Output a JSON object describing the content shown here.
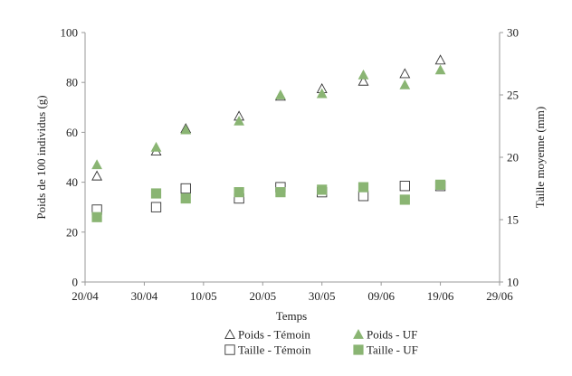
{
  "chart_data": {
    "type": "scatter",
    "xlabel": "Temps",
    "ylabel_left": "Poids de 100 individus (g)",
    "ylabel_right": "Taille moyenne (mm)",
    "x_ticks": [
      "20/04",
      "30/04",
      "10/05",
      "20/05",
      "30/05",
      "09/06",
      "19/06",
      "29/06"
    ],
    "x_range": [
      "20/04",
      "29/06"
    ],
    "y_left": {
      "min": 0,
      "max": 100,
      "ticks": [
        0,
        20,
        40,
        60,
        80,
        100
      ]
    },
    "y_right": {
      "min": 10,
      "max": 30,
      "ticks": [
        10,
        15,
        20,
        25,
        30
      ]
    },
    "grid": false,
    "legend_position": "bottom",
    "series": [
      {
        "name": "Poids - Témoin",
        "axis": "left",
        "marker": "triangle-open",
        "color": "#333333",
        "points": [
          {
            "x": "22/04",
            "y": 42.5
          },
          {
            "x": "02/05",
            "y": 52.5
          },
          {
            "x": "07/05",
            "y": 61.5
          },
          {
            "x": "16/05",
            "y": 66.5
          },
          {
            "x": "23/05",
            "y": 74.5
          },
          {
            "x": "30/05",
            "y": 77.5
          },
          {
            "x": "06/06",
            "y": 80.5
          },
          {
            "x": "13/06",
            "y": 83.5
          },
          {
            "x": "19/06",
            "y": 89
          }
        ]
      },
      {
        "name": "Poids - UF",
        "axis": "left",
        "marker": "triangle-filled",
        "color": "#8ab573",
        "points": [
          {
            "x": "22/04",
            "y": 47
          },
          {
            "x": "02/05",
            "y": 54
          },
          {
            "x": "07/05",
            "y": 61
          },
          {
            "x": "16/05",
            "y": 64.5
          },
          {
            "x": "23/05",
            "y": 75
          },
          {
            "x": "30/05",
            "y": 75.5
          },
          {
            "x": "06/06",
            "y": 83
          },
          {
            "x": "13/06",
            "y": 79
          },
          {
            "x": "19/06",
            "y": 85
          }
        ]
      },
      {
        "name": "Taille - Témoin",
        "axis": "right",
        "marker": "square-open",
        "color": "#333333",
        "points": [
          {
            "x": "22/04",
            "y": 15.8
          },
          {
            "x": "02/05",
            "y": 16.0
          },
          {
            "x": "07/05",
            "y": 17.5
          },
          {
            "x": "16/05",
            "y": 16.7
          },
          {
            "x": "23/05",
            "y": 17.6
          },
          {
            "x": "30/05",
            "y": 17.2
          },
          {
            "x": "06/06",
            "y": 16.9
          },
          {
            "x": "13/06",
            "y": 17.7
          },
          {
            "x": "19/06",
            "y": 17.7
          }
        ]
      },
      {
        "name": "Taille - UF",
        "axis": "right",
        "marker": "square-filled",
        "color": "#8ab573",
        "points": [
          {
            "x": "22/04",
            "y": 15.2
          },
          {
            "x": "02/05",
            "y": 17.1
          },
          {
            "x": "07/05",
            "y": 16.7
          },
          {
            "x": "16/05",
            "y": 17.2
          },
          {
            "x": "23/05",
            "y": 17.2
          },
          {
            "x": "30/05",
            "y": 17.4
          },
          {
            "x": "06/06",
            "y": 17.6
          },
          {
            "x": "13/06",
            "y": 16.6
          },
          {
            "x": "19/06",
            "y": 17.8
          }
        ]
      }
    ]
  }
}
